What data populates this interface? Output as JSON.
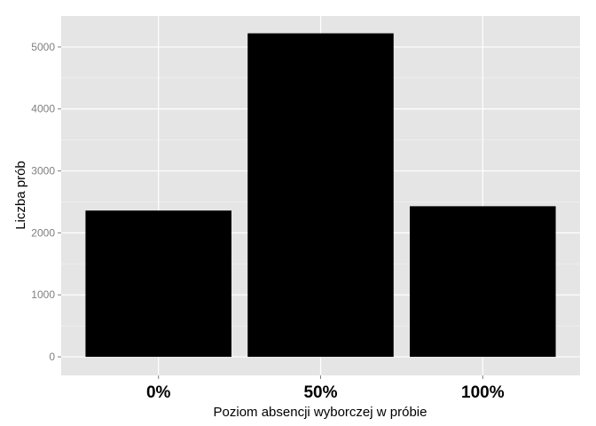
{
  "chart_data": {
    "type": "bar",
    "categories": [
      "0%",
      "50%",
      "100%"
    ],
    "values": [
      2360,
      5220,
      2430
    ],
    "xlabel": "Poziom absencji wyborczej w próbie",
    "ylabel": "Liczba prób",
    "ylim": [
      -300,
      5500
    ],
    "yticks": [
      0,
      1000,
      2000,
      3000,
      4000,
      5000
    ],
    "grid": true,
    "panel_color": "#e5e5e5",
    "bar_color": "#000000"
  }
}
